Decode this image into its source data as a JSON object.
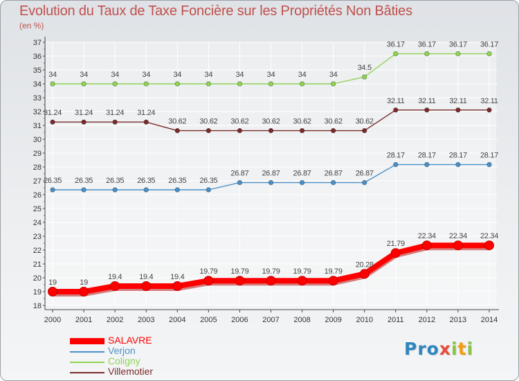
{
  "header": {
    "title": "Evolution du Taux de Taxe Foncière sur les Propriétés Non Bâties",
    "unit": "(en %)"
  },
  "brand": {
    "letters": [
      "P",
      "r",
      "o",
      "x",
      "i",
      "t",
      "i"
    ],
    "colors": [
      "#2e86c1",
      "#2e86c1",
      "#2e86c1",
      "#e74c3c",
      "#8bc34a",
      "#f39c12",
      "#8bc34a"
    ]
  },
  "chart_data": {
    "type": "line",
    "title": "Evolution du Taux de Taxe Foncière sur les Propriétés Non Bâties",
    "ylabel": "(en %)",
    "xlabel": "",
    "categories": [
      "2000",
      "2001",
      "2002",
      "2003",
      "2004",
      "2005",
      "2006",
      "2007",
      "2008",
      "2009",
      "2010",
      "2011",
      "2012",
      "2013",
      "2014"
    ],
    "ylim": [
      18,
      37
    ],
    "yticks": [
      "18",
      "19",
      "20",
      "21",
      "22",
      "23",
      "24",
      "25",
      "26",
      "27",
      "28",
      "29",
      "30",
      "31",
      "32",
      "33",
      "34",
      "35",
      "36",
      "37"
    ],
    "grid": true,
    "legend_position": "bottom-left",
    "series": [
      {
        "name": "SALAVRE",
        "color": "#ff0000",
        "values": [
          19,
          19,
          19.4,
          19.4,
          19.4,
          19.79,
          19.79,
          19.79,
          19.79,
          19.79,
          20.28,
          21.79,
          22.34,
          22.34,
          22.34
        ],
        "labels": [
          "19",
          "19",
          "19.4",
          "19.4",
          "19.4",
          "19.79",
          "19.79",
          "19.79",
          "19.79",
          "19.79",
          "20.28",
          "21.79",
          "22.34",
          "22.34",
          "22.34"
        ]
      },
      {
        "name": "Verjon",
        "color": "#4a90c8",
        "values": [
          26.35,
          26.35,
          26.35,
          26.35,
          26.35,
          26.35,
          26.87,
          26.87,
          26.87,
          26.87,
          26.87,
          28.17,
          28.17,
          28.17,
          28.17
        ],
        "labels": [
          "26.35",
          "26.35",
          "26.35",
          "26.35",
          "26.35",
          "26.35",
          "26.87",
          "26.87",
          "26.87",
          "26.87",
          "26.87",
          "28.17",
          "28.17",
          "28.17",
          "28.17"
        ]
      },
      {
        "name": "Coligny",
        "color": "#8fd452",
        "values": [
          34,
          34,
          34,
          34,
          34,
          34,
          34,
          34,
          34,
          34,
          34.5,
          36.17,
          36.17,
          36.17,
          36.17
        ],
        "labels": [
          "34",
          "34",
          "34",
          "34",
          "34",
          "34",
          "34",
          "34",
          "34",
          "34",
          "34.5",
          "36.17",
          "36.17",
          "36.17",
          "36.17"
        ]
      },
      {
        "name": "Villemotier",
        "color": "#7a2a2a",
        "values": [
          31.24,
          31.24,
          31.24,
          31.24,
          30.62,
          30.62,
          30.62,
          30.62,
          30.62,
          30.62,
          30.62,
          32.11,
          32.11,
          32.11,
          32.11
        ],
        "labels": [
          "31.24",
          "31.24",
          "31.24",
          "31.24",
          "30.62",
          "30.62",
          "30.62",
          "30.62",
          "30.62",
          "30.62",
          "30.62",
          "32.11",
          "32.11",
          "32.11",
          "32.11"
        ]
      }
    ]
  }
}
